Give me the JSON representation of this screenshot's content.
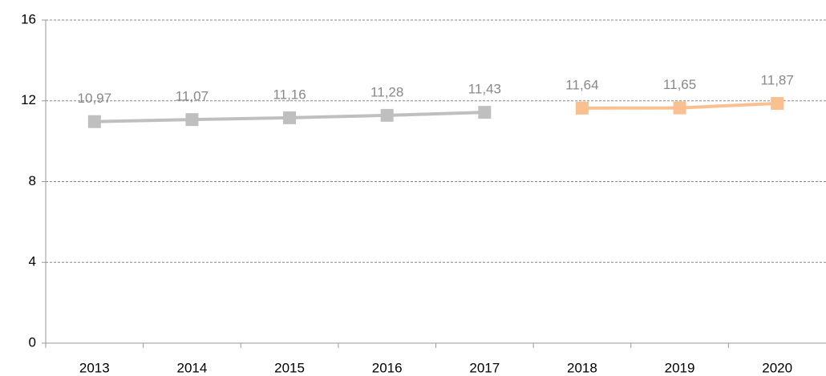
{
  "chart_data": {
    "type": "line",
    "categories": [
      "2013",
      "2014",
      "2015",
      "2016",
      "2017",
      "2018",
      "2019",
      "2020"
    ],
    "series": [
      {
        "color": "#bfbfbf",
        "values": [
          10.97,
          11.07,
          11.16,
          11.28,
          11.43,
          null,
          null,
          null
        ],
        "value_labels": [
          "10,97",
          "11,07",
          "11,16",
          "11,28",
          "11,43",
          null,
          null,
          null
        ]
      },
      {
        "color": "#fac090",
        "values": [
          null,
          null,
          null,
          null,
          null,
          11.64,
          11.65,
          11.87
        ],
        "value_labels": [
          null,
          null,
          null,
          null,
          null,
          "11,64",
          "11,65",
          "11,87"
        ]
      }
    ],
    "ylim": [
      0,
      16
    ],
    "yticks": [
      0,
      4,
      8,
      12,
      16
    ],
    "grid": true
  }
}
